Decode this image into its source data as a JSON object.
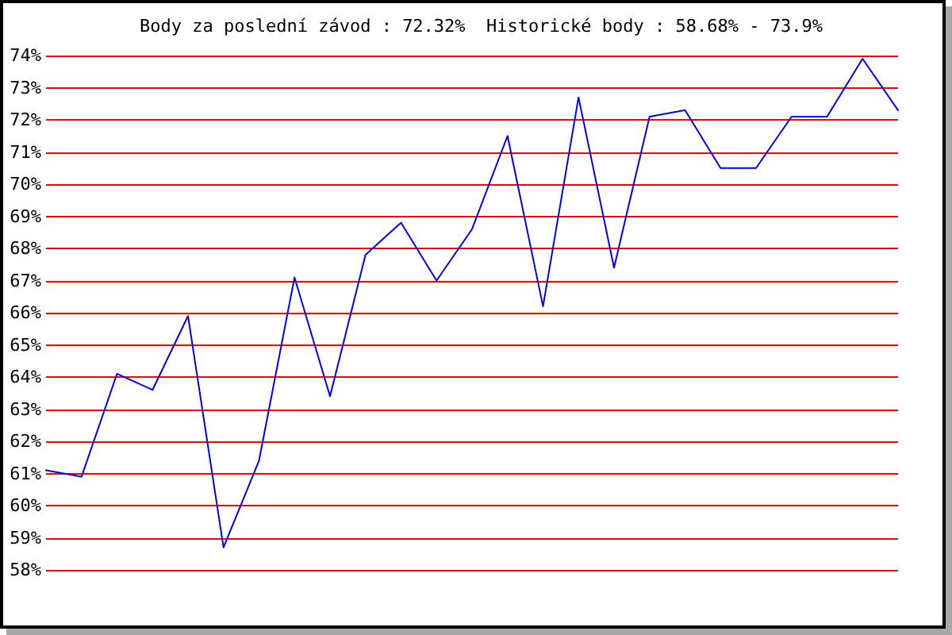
{
  "chart_data": {
    "type": "line",
    "title": "Body za poslední závod : 72.32%  Historické body : 58.68% - 73.9%",
    "categories": [
      null,
      null,
      null,
      null,
      null,
      null,
      null,
      null,
      null,
      null,
      null,
      null,
      null,
      null,
      null,
      null,
      null,
      null,
      null,
      null,
      null,
      null,
      null,
      null,
      null
    ],
    "values": [
      61.1,
      60.9,
      64.1,
      63.6,
      65.9,
      58.7,
      61.4,
      67.1,
      63.4,
      67.8,
      68.8,
      67.0,
      68.6,
      71.5,
      66.2,
      72.7,
      67.4,
      72.1,
      72.3,
      70.5,
      70.5,
      72.1,
      72.1,
      73.9,
      72.3
    ],
    "color": "#0000ff",
    "ylim": [
      58,
      74
    ],
    "yticks": [
      {
        "value": 58,
        "label": "58%"
      },
      {
        "value": 59,
        "label": "59%"
      },
      {
        "value": 60,
        "label": "60%"
      },
      {
        "value": 61,
        "label": "61%"
      },
      {
        "value": 62,
        "label": "62%"
      },
      {
        "value": 63,
        "label": "63%"
      },
      {
        "value": 64,
        "label": "64%"
      },
      {
        "value": 65,
        "label": "65%"
      },
      {
        "value": 66,
        "label": "66%"
      },
      {
        "value": 67,
        "label": "67%"
      },
      {
        "value": 68,
        "label": "68%"
      },
      {
        "value": 69,
        "label": "69%"
      },
      {
        "value": 70,
        "label": "70%"
      },
      {
        "value": 71,
        "label": "71%"
      },
      {
        "value": 72,
        "label": "72%"
      },
      {
        "value": 73,
        "label": "73%"
      },
      {
        "value": 74,
        "label": "74%"
      }
    ],
    "grid": "y",
    "marker": "none",
    "tick_labels": "y"
  }
}
